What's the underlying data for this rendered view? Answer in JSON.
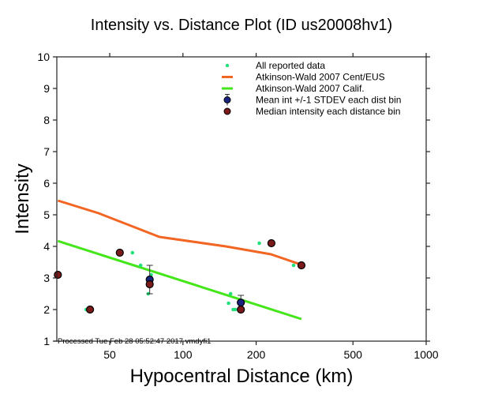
{
  "chart_data": {
    "type": "scatter",
    "title": "Intensity vs. Distance Plot (ID us20008hv1)",
    "xlabel": "Hypocentral Distance (km)",
    "ylabel": "Intensity",
    "xscale": "log",
    "xlim": [
      30.3,
      1000
    ],
    "ylim": [
      1,
      10
    ],
    "xticks": [
      50,
      100,
      200,
      500,
      1000
    ],
    "xtick_labels": [
      "50",
      "100",
      "200",
      "500",
      "1000"
    ],
    "yticks": [
      1,
      2,
      3,
      4,
      5,
      6,
      7,
      8,
      9,
      10
    ],
    "ytick_labels": [
      "1",
      "2",
      "3",
      "4",
      "5",
      "6",
      "7",
      "8",
      "9",
      "10"
    ],
    "grid": false,
    "legend_position": "top-right",
    "footer": "Processed Tue Feb 28 05:52:47 2017 vmdyfi1",
    "series": [
      {
        "name": "All reported data",
        "kind": "points",
        "color": "#22e07a",
        "x": [
          40,
          62,
          67,
          72,
          74,
          154,
          157,
          161,
          164,
          206,
          285
        ],
        "y": [
          2.0,
          3.8,
          3.4,
          2.5,
          3.1,
          2.2,
          2.5,
          2.0,
          2.0,
          4.1,
          3.4
        ]
      },
      {
        "name": "Atkinson-Wald 2007 Cent/EUS",
        "kind": "line",
        "color": "#f26522",
        "x": [
          30.6,
          45,
          80,
          150,
          230,
          307
        ],
        "y": [
          5.45,
          5.05,
          4.3,
          4.0,
          3.75,
          3.42
        ]
      },
      {
        "name": "Atkinson-Wald 2007 Calif.",
        "kind": "line",
        "color": "#44e61a",
        "x": [
          30.6,
          307
        ],
        "y": [
          4.17,
          1.7
        ]
      },
      {
        "name": "Mean int +/-1 STDEV each dist bin",
        "kind": "errorbar",
        "color": "#1a237e",
        "x": [
          73,
          173
        ],
        "y": [
          2.95,
          2.22
        ],
        "yerr": [
          0.45,
          0.23
        ]
      },
      {
        "name": "Median intensity each distance bin",
        "kind": "points",
        "color": "#7a1a1a",
        "x": [
          30.6,
          41.5,
          55,
          73,
          173,
          231,
          307
        ],
        "y": [
          3.1,
          2.0,
          3.8,
          2.8,
          2.0,
          4.1,
          3.4
        ]
      }
    ]
  }
}
